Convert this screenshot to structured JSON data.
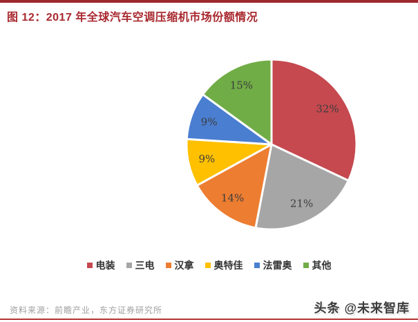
{
  "page": {
    "title": "图 12：2017 年全球汽车空调压缩机市场份额情况",
    "title_color": "#A8282E",
    "top_rule_color": "#9E2A2F",
    "bottom_rule_color": "#B23430"
  },
  "chart_data": {
    "type": "pie",
    "title": "2017 年全球汽车空调压缩机市场份额情况",
    "categories": [
      "电装",
      "三电",
      "汉拿",
      "奥特佳",
      "法雷奥",
      "其他"
    ],
    "values": [
      32,
      21,
      14,
      9,
      9,
      15
    ],
    "labels": [
      "32%",
      "21%",
      "14%",
      "9%",
      "9%",
      "15%"
    ],
    "colors": [
      "#C5494F",
      "#A6A6A6",
      "#ED7D31",
      "#FFC000",
      "#4A7ED0",
      "#71AD47"
    ],
    "unit": "%",
    "start_angle_deg": 0,
    "direction": "clockwise",
    "legend_position": "bottom",
    "slice_gap_color": "#FFFFFF"
  },
  "footer": {
    "source": "资料来源：前瞻产业，东方证券研究所",
    "watermark": "头条 @未来智库"
  }
}
